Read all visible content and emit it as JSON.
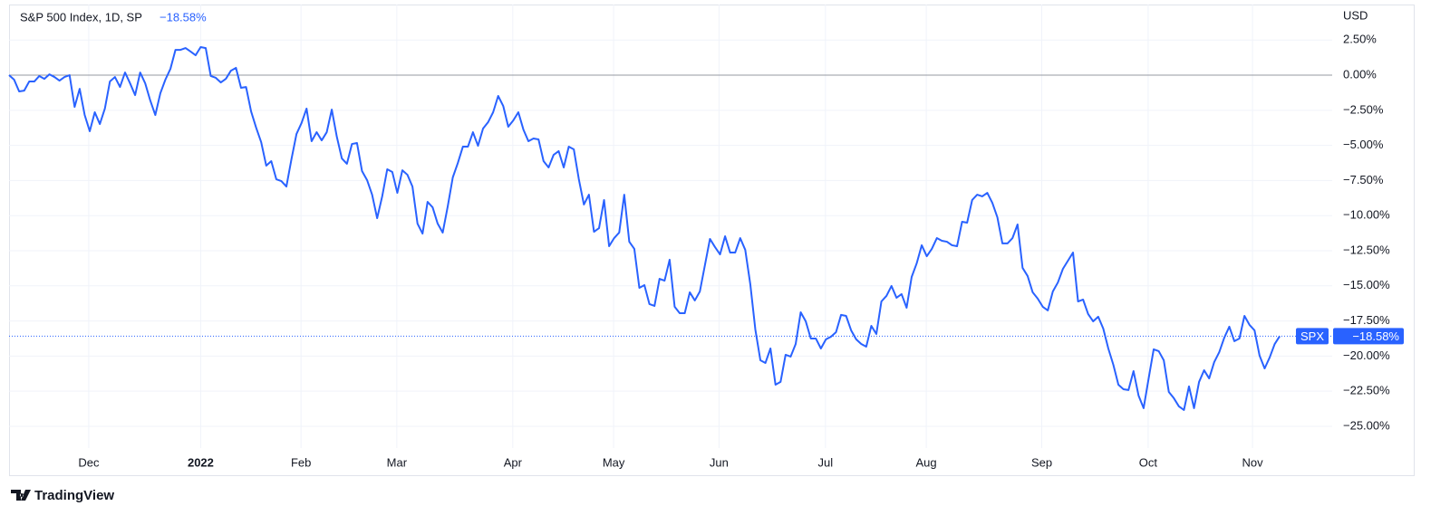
{
  "chart_data": {
    "type": "line",
    "title": "S&P 500 Index, 1D, SP",
    "change_label": "−18.58%",
    "currency": "USD",
    "brand": "TradingView",
    "grid": true,
    "baseline": 0,
    "ylim": [
      -26.55,
      5.03
    ],
    "yticks": [
      {
        "value": 2.5,
        "label": "2.50%"
      },
      {
        "value": 0,
        "label": "0.00%"
      },
      {
        "value": -2.5,
        "label": "−2.50%"
      },
      {
        "value": -5,
        "label": "−5.00%"
      },
      {
        "value": -7.5,
        "label": "−7.50%"
      },
      {
        "value": -10,
        "label": "−10.00%"
      },
      {
        "value": -12.5,
        "label": "−12.50%"
      },
      {
        "value": -15,
        "label": "−15.00%"
      },
      {
        "value": -17.5,
        "label": "−17.50%"
      },
      {
        "value": -20,
        "label": "−20.00%"
      },
      {
        "value": -22.5,
        "label": "−22.50%"
      },
      {
        "value": -25,
        "label": "−25.00%"
      }
    ],
    "xlim": [
      0,
      262.4
    ],
    "xticks": [
      {
        "value": 15.8,
        "label": "Dec"
      },
      {
        "value": 38.0,
        "label": "2022"
      },
      {
        "value": 57.9,
        "label": "Feb"
      },
      {
        "value": 76.9,
        "label": "Mar"
      },
      {
        "value": 99.9,
        "label": "Apr"
      },
      {
        "value": 119.9,
        "label": "May"
      },
      {
        "value": 140.8,
        "label": "Jun"
      },
      {
        "value": 161.9,
        "label": "Jul"
      },
      {
        "value": 181.9,
        "label": "Aug"
      },
      {
        "value": 204.8,
        "label": "Sep"
      },
      {
        "value": 225.9,
        "label": "Oct"
      },
      {
        "value": 246.6,
        "label": "Nov"
      }
    ],
    "series": [
      {
        "name": "SPX",
        "color": "#2962ff",
        "values": [
          0.0,
          -0.32,
          -1.16,
          -1.1,
          -0.45,
          -0.45,
          -0.06,
          -0.26,
          0.06,
          -0.13,
          -0.39,
          -0.13,
          0.0,
          -2.26,
          -0.97,
          -2.84,
          -3.99,
          -2.64,
          -3.48,
          -2.38,
          -0.45,
          -0.13,
          -0.84,
          0.19,
          -0.58,
          -1.42,
          0.19,
          -0.58,
          -1.8,
          -2.84,
          -1.29,
          -0.32,
          0.45,
          1.8,
          1.8,
          1.93,
          1.68,
          1.42,
          2.0,
          1.93,
          -0.06,
          -0.19,
          -0.52,
          -0.26,
          0.32,
          0.52,
          -0.9,
          -0.84,
          -2.58,
          -3.74,
          -4.77,
          -6.44,
          -6.12,
          -7.41,
          -7.54,
          -7.93,
          -5.99,
          -4.19,
          -3.41,
          -2.38,
          -4.7,
          -4.06,
          -4.64,
          -4.06,
          -2.45,
          -4.38,
          -5.93,
          -6.31,
          -4.9,
          -4.83,
          -6.83,
          -7.47,
          -8.51,
          -10.18,
          -8.63,
          -6.7,
          -6.89,
          -8.38,
          -6.77,
          -7.09,
          -7.93,
          -10.57,
          -11.28,
          -9.02,
          -9.41,
          -10.57,
          -11.21,
          -9.34,
          -7.28,
          -6.25,
          -5.09,
          -5.09,
          -4.06,
          -5.03,
          -3.8,
          -3.35,
          -2.64,
          -1.48,
          -2.19,
          -3.67,
          -3.22,
          -2.64,
          -3.87,
          -4.7,
          -4.51,
          -4.57,
          -6.12,
          -6.57,
          -5.67,
          -5.41,
          -6.57,
          -5.09,
          -5.28,
          -7.41,
          -9.21,
          -8.51,
          -11.15,
          -10.89,
          -8.89,
          -12.18,
          -11.6,
          -11.21,
          -8.51,
          -11.86,
          -12.37,
          -15.14,
          -14.95,
          -16.3,
          -16.43,
          -14.5,
          -14.63,
          -13.14,
          -16.49,
          -16.95,
          -16.95,
          -15.46,
          -16.04,
          -15.4,
          -13.53,
          -11.66,
          -12.24,
          -12.76,
          -11.47,
          -12.63,
          -12.63,
          -11.6,
          -12.44,
          -14.88,
          -18.11,
          -20.3,
          -20.49,
          -19.46,
          -22.04,
          -21.84,
          -19.91,
          -20.04,
          -19.14,
          -16.88,
          -17.53,
          -18.75,
          -18.75,
          -19.46,
          -18.81,
          -18.62,
          -18.3,
          -17.07,
          -17.14,
          -18.17,
          -18.81,
          -19.14,
          -19.33,
          -17.85,
          -18.43,
          -16.11,
          -15.72,
          -15.01,
          -15.85,
          -15.59,
          -16.56,
          -14.37,
          -13.4,
          -12.11,
          -12.89,
          -12.37,
          -11.6,
          -11.79,
          -11.86,
          -12.11,
          -12.18,
          -10.44,
          -10.5,
          -8.89,
          -8.51,
          -8.63,
          -8.38,
          -9.09,
          -10.12,
          -11.98,
          -11.98,
          -11.6,
          -10.63,
          -13.72,
          -14.3,
          -15.46,
          -15.91,
          -16.49,
          -16.75,
          -15.4,
          -14.76,
          -13.79,
          -13.21,
          -12.63,
          -16.11,
          -15.98,
          -17.01,
          -17.53,
          -17.2,
          -18.04,
          -19.46,
          -20.62,
          -22.04,
          -22.36,
          -22.42,
          -21.07,
          -22.81,
          -23.71,
          -21.59,
          -19.52,
          -19.65,
          -20.3,
          -22.55,
          -23.0,
          -23.58,
          -23.84,
          -22.16,
          -23.71,
          -21.84,
          -21.01,
          -21.59,
          -20.43,
          -19.72,
          -18.69,
          -17.91,
          -18.94,
          -18.75,
          -17.14,
          -17.78,
          -18.17,
          -19.97,
          -20.88,
          -20.1,
          -19.14,
          -18.58
        ]
      }
    ]
  }
}
